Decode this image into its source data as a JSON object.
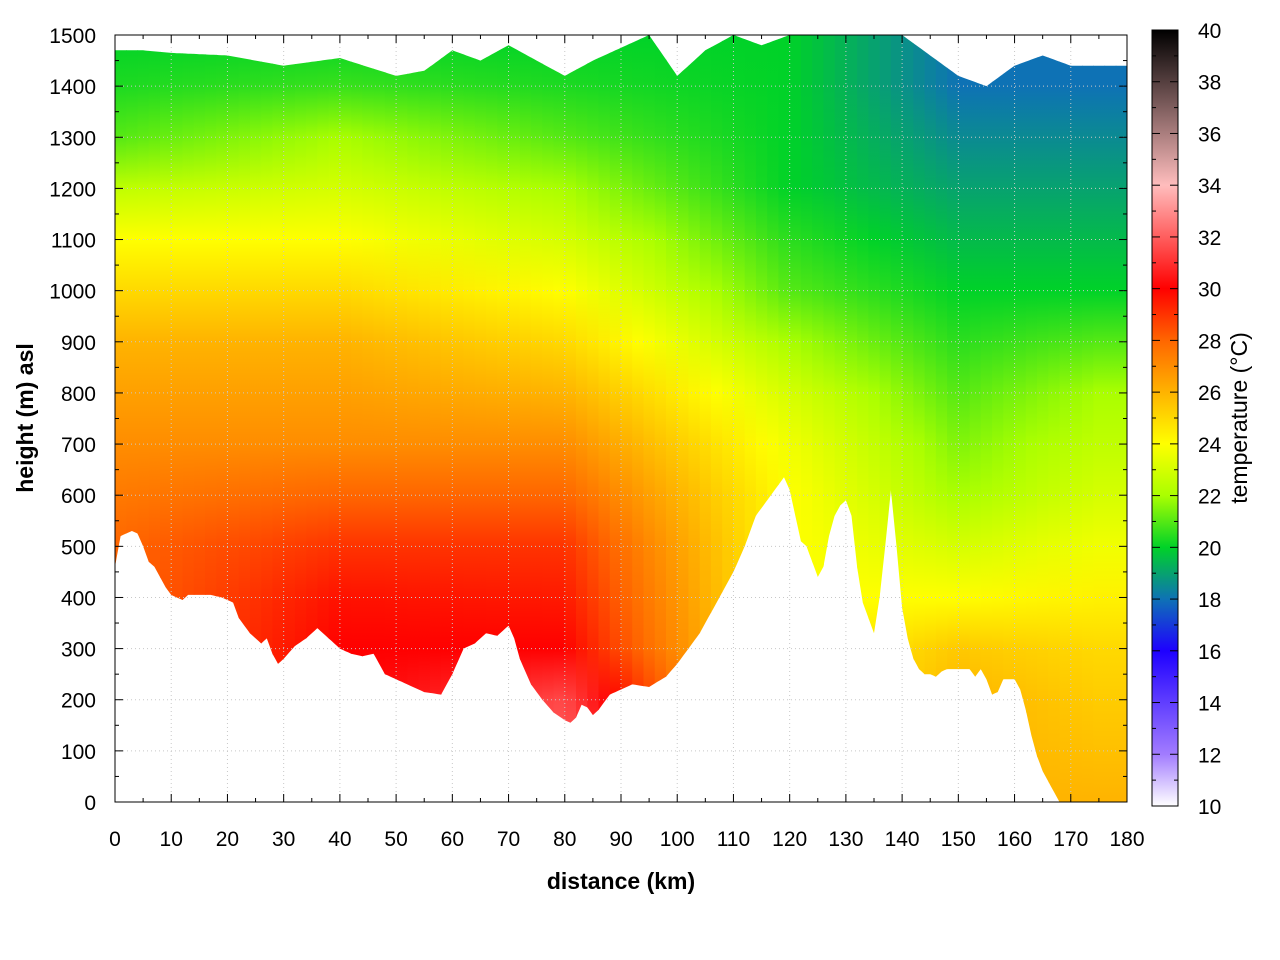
{
  "colors": {
    "palette": [
      "#ffffff",
      "#a27cff",
      "#1e00ff",
      "#0e72b5",
      "#00d228",
      "#aaff00",
      "#ffff00",
      "#ffb300",
      "#ff6600",
      "#ff0000",
      "#ffbdbd",
      "#000000"
    ],
    "palette_temps": [
      10,
      12,
      16,
      18,
      20,
      22,
      24,
      26,
      28,
      30,
      34,
      40
    ],
    "grid": "#c8c8c8",
    "axis": "#000000"
  },
  "chart_data": {
    "type": "heatmap",
    "title": "",
    "xlabel": "distance (km)",
    "ylabel": "height (m) asl",
    "colorbar_label": "temperature (°C)",
    "xlim": [
      0,
      180
    ],
    "ylim": [
      0,
      1500
    ],
    "clim": [
      10,
      40
    ],
    "x_ticks": [
      "0",
      "10",
      "20",
      "30",
      "40",
      "50",
      "60",
      "70",
      "80",
      "90",
      "100",
      "110",
      "120",
      "130",
      "140",
      "150",
      "160",
      "170",
      "180"
    ],
    "y_ticks": [
      "0",
      "100",
      "200",
      "300",
      "400",
      "500",
      "600",
      "700",
      "800",
      "900",
      "1000",
      "1100",
      "1200",
      "1300",
      "1400",
      "1500"
    ],
    "colorbar_ticks": [
      "10",
      "12",
      "14",
      "16",
      "18",
      "20",
      "22",
      "24",
      "26",
      "28",
      "30",
      "32",
      "34",
      "36",
      "38",
      "40"
    ],
    "grid": true,
    "terrain_profile": {
      "distance_km": [
        0,
        1,
        3,
        4,
        5,
        6,
        7,
        8,
        9,
        10,
        11,
        12,
        13,
        15,
        17,
        19,
        21,
        22,
        24,
        26,
        27,
        28,
        29,
        30,
        32,
        34,
        36,
        38,
        40,
        42,
        44,
        46,
        48,
        50,
        52,
        55,
        58,
        60,
        62,
        64,
        66,
        68,
        70,
        71,
        72,
        74,
        76,
        78,
        80,
        81,
        82,
        83,
        84,
        85,
        86,
        88,
        90,
        92,
        95,
        98,
        100,
        102,
        104,
        106,
        108,
        110,
        112,
        114,
        116,
        118,
        119,
        120,
        121,
        122,
        123,
        124,
        125,
        126,
        127,
        128,
        129,
        130,
        131,
        132,
        133,
        134,
        135,
        136,
        137,
        138,
        139,
        140,
        141,
        142,
        143,
        144,
        145,
        146,
        147,
        148,
        150,
        152,
        153,
        154,
        155,
        156,
        157,
        158,
        159,
        160,
        161,
        162,
        163,
        164,
        165,
        166,
        167,
        168,
        169,
        180
      ],
      "height_m": [
        460,
        520,
        530,
        525,
        500,
        470,
        460,
        440,
        420,
        405,
        400,
        395,
        405,
        405,
        405,
        400,
        390,
        360,
        330,
        310,
        320,
        290,
        270,
        280,
        305,
        320,
        340,
        320,
        300,
        290,
        285,
        290,
        250,
        240,
        230,
        215,
        210,
        250,
        300,
        310,
        330,
        325,
        345,
        320,
        280,
        230,
        200,
        175,
        160,
        155,
        165,
        190,
        185,
        170,
        180,
        210,
        220,
        230,
        225,
        245,
        270,
        300,
        330,
        370,
        410,
        450,
        500,
        560,
        590,
        620,
        635,
        610,
        560,
        510,
        500,
        470,
        440,
        460,
        520,
        560,
        580,
        590,
        560,
        460,
        390,
        360,
        330,
        400,
        500,
        610,
        500,
        380,
        320,
        280,
        260,
        250,
        250,
        245,
        255,
        260,
        260,
        260,
        245,
        260,
        240,
        210,
        215,
        240,
        240,
        240,
        220,
        180,
        130,
        90,
        60,
        40,
        20,
        0,
        0,
        0
      ]
    },
    "top_boundary": {
      "distance_km": [
        0,
        5,
        10,
        20,
        30,
        40,
        50,
        55,
        60,
        65,
        70,
        75,
        80,
        85,
        90,
        95,
        100,
        105,
        110,
        115,
        120,
        125,
        130,
        135,
        140,
        145,
        150,
        155,
        160,
        165,
        170,
        180
      ],
      "height_m": [
        1470,
        1470,
        1465,
        1460,
        1440,
        1455,
        1420,
        1430,
        1470,
        1450,
        1480,
        1450,
        1420,
        1450,
        1475,
        1500,
        1420,
        1470,
        1500,
        1480,
        1500,
        1500,
        1500,
        1500,
        1500,
        1460,
        1420,
        1400,
        1440,
        1460,
        1440,
        1440
      ]
    },
    "temperature_field_samples": [
      {
        "distance_km": 0,
        "height_m": [
          500,
          700,
          900,
          1100,
          1300,
          1450
        ],
        "temp_c": [
          28,
          27,
          26,
          24,
          21,
          20
        ]
      },
      {
        "distance_km": 40,
        "height_m": [
          350,
          500,
          700,
          900,
          1100,
          1300,
          1450
        ],
        "temp_c": [
          30,
          29,
          27,
          26,
          24,
          22,
          20
        ]
      },
      {
        "distance_km": 80,
        "height_m": [
          170,
          300,
          500,
          700,
          900,
          1100,
          1300,
          1450
        ],
        "temp_c": [
          32,
          30,
          29,
          27,
          25,
          23,
          21,
          20
        ]
      },
      {
        "distance_km": 120,
        "height_m": [
          650,
          800,
          1000,
          1200,
          1400
        ],
        "temp_c": [
          24,
          23,
          21,
          20,
          20
        ]
      },
      {
        "distance_km": 150,
        "height_m": [
          260,
          400,
          600,
          800,
          1000,
          1200,
          1400
        ],
        "temp_c": [
          26,
          24,
          22,
          21,
          20,
          19,
          18
        ]
      },
      {
        "distance_km": 175,
        "height_m": [
          0,
          300,
          600,
          800,
          1000,
          1200,
          1400
        ],
        "temp_c": [
          26,
          25,
          23,
          22,
          20,
          19,
          18
        ]
      }
    ]
  }
}
